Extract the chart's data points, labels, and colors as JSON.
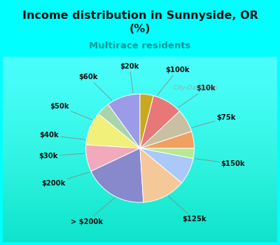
{
  "title": "Income distribution in Sunnyside, OR\n(%)",
  "subtitle": "Multirace residents",
  "background_color": "#00FFFF",
  "labels": [
    "$100k",
    "$10k",
    "$75k",
    "$150k",
    "$125k",
    "> $200k",
    "$200k",
    "$30k",
    "$40k",
    "$50k",
    "$60k",
    "$20k"
  ],
  "sizes": [
    10,
    4,
    10,
    8,
    19,
    13,
    8,
    3,
    5,
    7,
    9,
    4
  ],
  "colors": [
    "#9b9be8",
    "#aad4aa",
    "#f0f07a",
    "#f0aabc",
    "#8888cc",
    "#f5c89a",
    "#aac8f8",
    "#b8e890",
    "#f0a060",
    "#c8c0a0",
    "#e87878",
    "#c8a820"
  ],
  "watermark": "City-Data.com",
  "startangle": 90,
  "label_fontsize": 7.2,
  "chart_bg_color": "#cce8cc"
}
